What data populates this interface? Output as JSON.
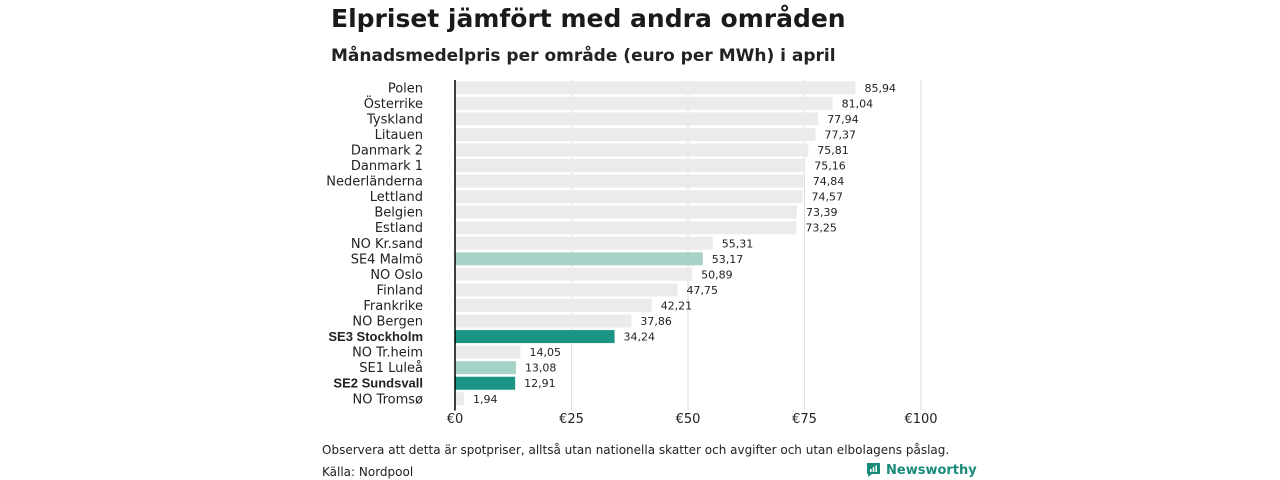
{
  "header": {
    "title": "Elpriset jämfört med andra områden",
    "subtitle": "Månadsmedelpris per område (euro per MWh) i april"
  },
  "footer": {
    "note": "Observera att detta är spotpriser, alltså utan nationella skatter och avgifter och utan elbolagens påslag.",
    "source": "Källa: Nordpool",
    "brand": "Newsworthy"
  },
  "colors": {
    "default_bar": "#ebebeb",
    "highlight_dark": "#1a9483",
    "highlight_light": "#a6d2c8",
    "grid": "#dddddd",
    "axis": "#000000",
    "brand": "#1a8a7a"
  },
  "chart_data": {
    "type": "bar",
    "orientation": "horizontal",
    "title": "Elpriset jämfört med andra områden",
    "subtitle": "Månadsmedelpris per område (euro per MWh) i april",
    "xlim": [
      0,
      100
    ],
    "x_ticks": [
      0,
      25,
      50,
      75,
      100
    ],
    "x_tick_labels": [
      "€0",
      "€25",
      "€50",
      "€75",
      "€100"
    ],
    "grid": true,
    "categories": [
      "Polen",
      "Österrike",
      "Tyskland",
      "Litauen",
      "Danmark  2",
      "Danmark  1",
      "Nederländerna",
      "Lettland",
      "Belgien",
      "Estland",
      "NO Kr.sand",
      "SE4  Malmö",
      "NO Oslo",
      "Finland",
      "Frankrike",
      "NO Bergen",
      "SE3 Stockholm",
      "NO Tr.heim",
      "SE1  Luleå",
      "SE2 Sundsvall",
      "NO Tromsø"
    ],
    "values": [
      85.94,
      81.04,
      77.94,
      77.37,
      75.81,
      75.16,
      74.84,
      74.57,
      73.39,
      73.25,
      55.31,
      53.17,
      50.89,
      47.75,
      42.21,
      37.86,
      34.24,
      14.05,
      13.08,
      12.91,
      1.94
    ],
    "value_labels": [
      "85,94",
      "81,04",
      "77,94",
      "77,37",
      "75,81",
      "75,16",
      "74,84",
      "74,57",
      "73,39",
      "73,25",
      "55,31",
      "53,17",
      "50,89",
      "47,75",
      "42,21",
      "37,86",
      "34,24",
      "14,05",
      "13,08",
      "12,91",
      "1,94"
    ],
    "highlight": [
      "none",
      "none",
      "none",
      "none",
      "none",
      "none",
      "none",
      "none",
      "none",
      "none",
      "none",
      "light",
      "none",
      "none",
      "none",
      "none",
      "dark",
      "none",
      "light",
      "dark",
      "none"
    ],
    "bold_labels": [
      false,
      false,
      false,
      false,
      false,
      false,
      false,
      false,
      false,
      false,
      false,
      false,
      false,
      false,
      false,
      false,
      true,
      false,
      false,
      true,
      false
    ]
  }
}
